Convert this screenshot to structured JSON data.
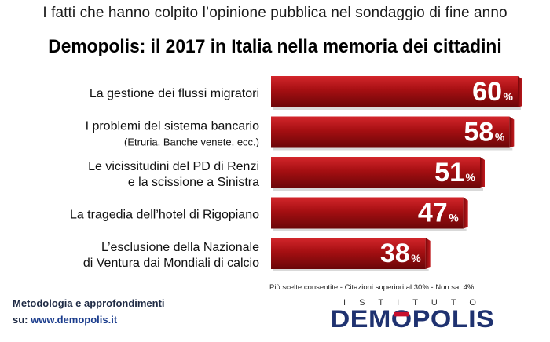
{
  "subtitle": "I fatti che hanno colpito l’opinione pubblica nel sondaggio di fine anno",
  "title": "Demopolis: il 2017 in Italia nella memoria dei cittadini",
  "chart_data": {
    "type": "bar",
    "orientation": "horizontal",
    "categories": [
      {
        "line1": "La gestione dei flussi migratori",
        "line2": ""
      },
      {
        "line1": "I problemi del sistema bancario",
        "line2": "(Etruria, Banche venete, ecc.)"
      },
      {
        "line1": "Le vicissitudini del PD di Renzi",
        "line2": "e la scissione a Sinistra"
      },
      {
        "line1": "La tragedia dell’hotel di Rigopiano",
        "line2": ""
      },
      {
        "line1": "L’esclusione della Nazionale",
        "line2": "di Ventura dai Mondiali di calcio"
      }
    ],
    "values": [
      60,
      58,
      51,
      47,
      38
    ],
    "unit": "%",
    "bar_color": "#a50f12"
  },
  "footnote": "Più scelte consentite - Citazioni superiori al 30% - Non sa: 4%",
  "methodology": {
    "line1": "Metodologia e approfondimenti",
    "prefix": "su: ",
    "url": "www.demopolis.it"
  },
  "logo": {
    "top": "ISTITUTO",
    "main_a": "DEM",
    "main_o": "O",
    "main_b": "POLIS"
  }
}
